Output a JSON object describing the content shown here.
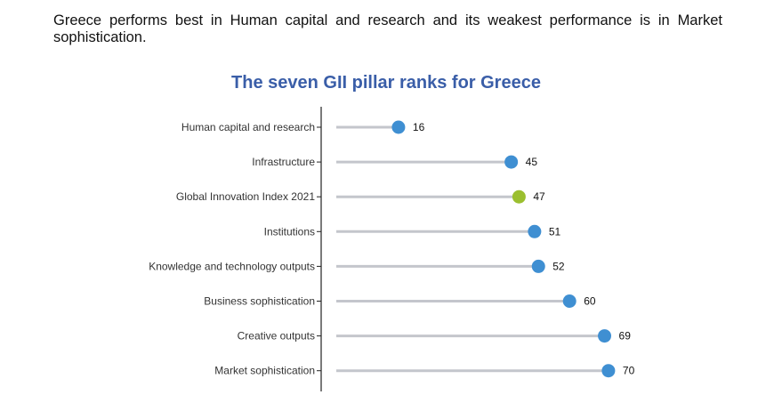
{
  "intro_text": "Greece performs best in Human capital and research and its weakest performance is in Market sophistication.",
  "chart_data": {
    "type": "lollipop",
    "title": "The seven GII pillar ranks for Greece",
    "categories": [
      "Human capital and research",
      "Infrastructure",
      "Global Innovation Index 2021",
      "Institutions",
      "Knowledge and technology outputs",
      "Business sophistication",
      "Creative outputs",
      "Market sophistication"
    ],
    "values": [
      16,
      45,
      47,
      51,
      52,
      60,
      69,
      70
    ],
    "highlight_category": "Global Innovation Index 2021",
    "colors": {
      "default": "#3f8fd2",
      "highlight": "#9bbf2f",
      "stem": "#c4c6cc",
      "axis": "#222222"
    },
    "xlim": [
      0,
      80
    ],
    "grid": false,
    "legend": "none"
  }
}
